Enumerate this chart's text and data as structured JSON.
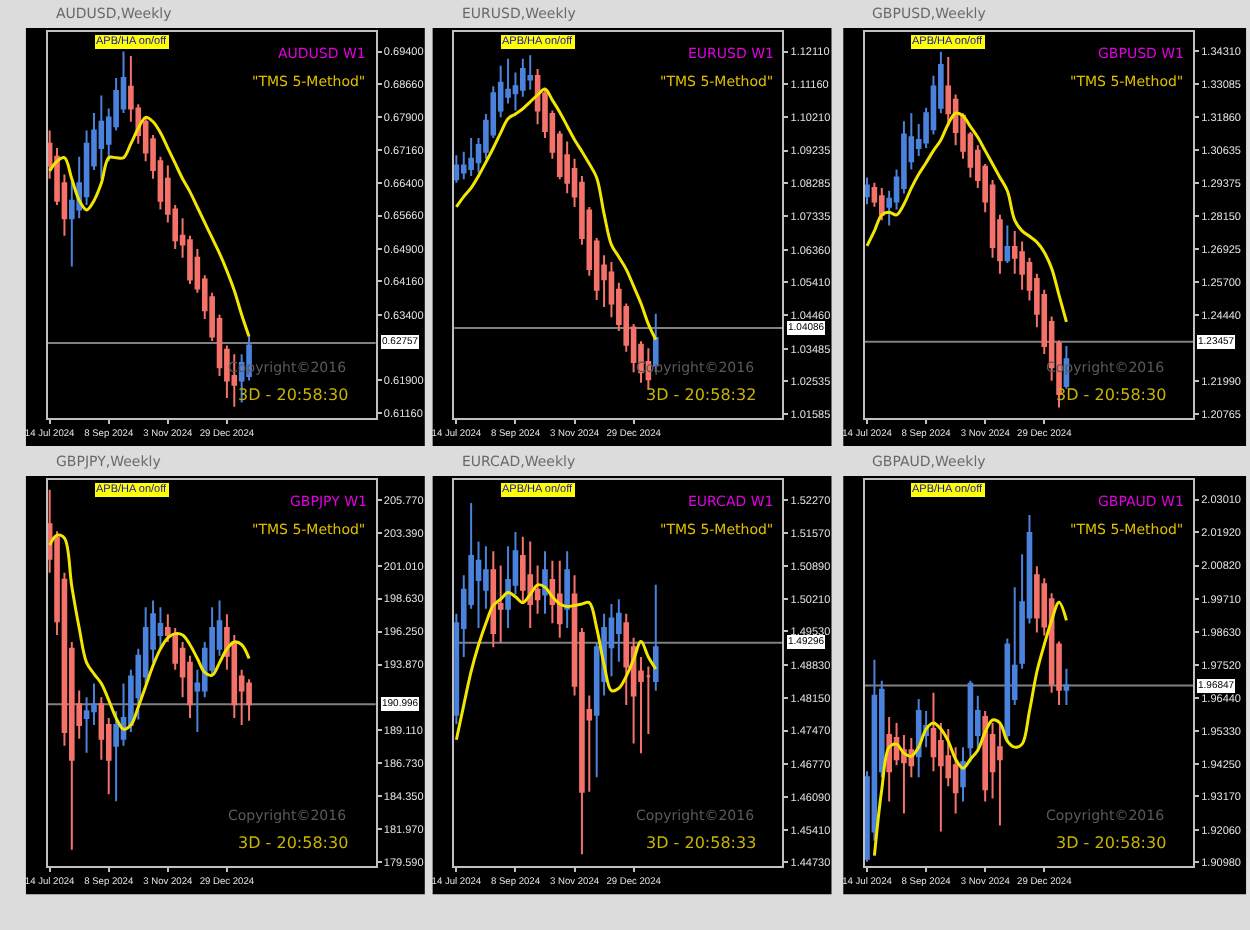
{
  "chart_data": [
    {
      "type": "candlestick",
      "title": "AUDUSD,Weekly",
      "annotations": [
        "APB/HA on/off",
        "AUDUSD W1",
        "\"TMS 5-Method\"",
        "Copyright©2016",
        "3D - 20:58:30"
      ],
      "x": [
        "2024-07-14",
        "2024-07-21",
        "2024-07-28",
        "2024-08-04",
        "2024-08-11",
        "2024-08-18",
        "2024-08-25",
        "2024-09-01",
        "2024-09-08",
        "2024-09-15",
        "2024-09-22",
        "2024-09-29",
        "2024-10-06",
        "2024-10-13",
        "2024-10-20",
        "2024-10-27",
        "2024-11-03",
        "2024-11-10",
        "2024-11-17",
        "2024-11-24",
        "2024-12-01",
        "2024-12-08",
        "2024-12-15",
        "2024-12-22",
        "2024-12-29",
        "2025-01-05",
        "2025-01-12",
        "2025-01-19"
      ],
      "ohlc": [
        [
          0.673,
          0.676,
          0.665,
          0.668
        ],
        [
          0.67,
          0.672,
          0.659,
          0.66
        ],
        [
          0.664,
          0.666,
          0.652,
          0.656
        ],
        [
          0.656,
          0.665,
          0.645,
          0.66
        ],
        [
          0.658,
          0.67,
          0.656,
          0.664
        ],
        [
          0.661,
          0.676,
          0.659,
          0.673
        ],
        [
          0.668,
          0.68,
          0.667,
          0.676
        ],
        [
          0.672,
          0.684,
          0.665,
          0.678
        ],
        [
          0.673,
          0.681,
          0.669,
          0.679
        ],
        [
          0.677,
          0.688,
          0.676,
          0.685
        ],
        [
          0.681,
          0.694,
          0.68,
          0.688
        ],
        [
          0.686,
          0.693,
          0.678,
          0.681
        ],
        [
          0.681,
          0.682,
          0.673,
          0.675
        ],
        [
          0.678,
          0.679,
          0.669,
          0.671
        ],
        [
          0.674,
          0.675,
          0.665,
          0.667
        ],
        [
          0.669,
          0.67,
          0.658,
          0.66
        ],
        [
          0.665,
          0.668,
          0.655,
          0.657
        ],
        [
          0.658,
          0.659,
          0.649,
          0.651
        ],
        [
          0.652,
          0.656,
          0.647,
          0.65
        ],
        [
          0.651,
          0.652,
          0.641,
          0.642
        ],
        [
          0.647,
          0.649,
          0.639,
          0.64
        ],
        [
          0.642,
          0.643,
          0.633,
          0.635
        ],
        [
          0.638,
          0.639,
          0.628,
          0.629
        ],
        [
          0.633,
          0.634,
          0.62,
          0.622
        ],
        [
          0.626,
          0.627,
          0.615,
          0.619
        ],
        [
          0.62,
          0.625,
          0.613,
          0.618
        ],
        [
          0.619,
          0.625,
          0.614,
          0.623
        ],
        [
          0.62,
          0.629,
          0.619,
          0.627
        ]
      ],
      "colors": [
        "#f4726a",
        "#f4726a",
        "#f4726a",
        "#4a82dc",
        "#4a82dc",
        "#4a82dc",
        "#4a82dc",
        "#4a82dc",
        "#4a82dc",
        "#4a82dc",
        "#4a82dc",
        "#f4726a",
        "#f4726a",
        "#f4726a",
        "#f4726a",
        "#f4726a",
        "#f4726a",
        "#f4726a",
        "#f4726a",
        "#f4726a",
        "#f4726a",
        "#f4726a",
        "#f4726a",
        "#f4726a",
        "#f4726a",
        "#f4726a",
        "#4a82dc",
        "#4a82dc"
      ],
      "series": [
        {
          "type": "line",
          "color": "#f2e600",
          "values": [
            0.6668,
            0.669,
            0.6698,
            0.665,
            0.6601,
            0.6579,
            0.66,
            0.664,
            0.6698,
            0.6698,
            0.6698,
            0.673,
            0.6765,
            0.679,
            0.678,
            0.6755,
            0.672,
            0.6685,
            0.665,
            0.662,
            0.6585,
            0.655,
            0.6515,
            0.648,
            0.644,
            0.6395,
            0.634,
            0.629
          ]
        }
      ],
      "xlim": [
        "2024-07-12",
        "2025-05-19"
      ],
      "xticks": [
        {
          "value": "2024-07-14",
          "label": "14 Jul 2024"
        },
        {
          "value": "2024-09-08",
          "label": "8 Sep 2024"
        },
        {
          "value": "2024-11-03",
          "label": "3 Nov 2024"
        },
        {
          "value": "2024-12-29",
          "label": "29 Dec 2024"
        }
      ],
      "ylim": [
        0.6104,
        0.6985
      ],
      "yticks": [
        {
          "value": 0.694,
          "label": "0.69400"
        },
        {
          "value": 0.6866,
          "label": "0.68660"
        },
        {
          "value": 0.679,
          "label": "0.67900"
        },
        {
          "value": 0.6716,
          "label": "0.67160"
        },
        {
          "value": 0.664,
          "label": "0.66400"
        },
        {
          "value": 0.6566,
          "label": "0.65660"
        },
        {
          "value": 0.649,
          "label": "0.64900"
        },
        {
          "value": 0.6416,
          "label": "0.64160"
        },
        {
          "value": 0.634,
          "label": "0.63400"
        },
        {
          "value": 0.619,
          "label": "0.61900"
        },
        {
          "value": 0.6116,
          "label": "0.61160"
        }
      ],
      "ref_lines": [
        {
          "axis": "y",
          "value": 0.62757,
          "label": "0.62757",
          "color": "#808080"
        }
      ]
    },
    {
      "type": "candlestick",
      "title": "EURUSD,Weekly",
      "annotations": [
        "APB/HA on/off",
        "EURUSD W1",
        "\"TMS 5-Method\"",
        "Copyright©2016",
        "3D - 20:58:32"
      ],
      "x": [
        "2024-07-14",
        "2024-07-21",
        "2024-07-28",
        "2024-08-04",
        "2024-08-11",
        "2024-08-18",
        "2024-08-25",
        "2024-09-01",
        "2024-09-08",
        "2024-09-15",
        "2024-09-22",
        "2024-09-29",
        "2024-10-06",
        "2024-10-13",
        "2024-10-20",
        "2024-10-27",
        "2024-11-03",
        "2024-11-10",
        "2024-11-17",
        "2024-11-24",
        "2024-12-01",
        "2024-12-08",
        "2024-12-15",
        "2024-12-22",
        "2024-12-29",
        "2025-01-05",
        "2025-01-12",
        "2025-01-19"
      ],
      "ohlc": [
        [
          1.084,
          1.091,
          1.083,
          1.088
        ],
        [
          1.086,
          1.092,
          1.084,
          1.088
        ],
        [
          1.087,
          1.096,
          1.085,
          1.09
        ],
        [
          1.089,
          1.096,
          1.086,
          1.094
        ],
        [
          1.092,
          1.103,
          1.09,
          1.101
        ],
        [
          1.097,
          1.111,
          1.096,
          1.109
        ],
        [
          1.104,
          1.117,
          1.102,
          1.112
        ],
        [
          1.108,
          1.119,
          1.106,
          1.11
        ],
        [
          1.109,
          1.115,
          1.104,
          1.111
        ],
        [
          1.11,
          1.119,
          1.108,
          1.116
        ],
        [
          1.113,
          1.12,
          1.11,
          1.114
        ],
        [
          1.114,
          1.116,
          1.1,
          1.104
        ],
        [
          1.109,
          1.11,
          1.096,
          1.098
        ],
        [
          1.103,
          1.104,
          1.09,
          1.092
        ],
        [
          1.097,
          1.098,
          1.084,
          1.085
        ],
        [
          1.091,
          1.095,
          1.08,
          1.083
        ],
        [
          1.087,
          1.09,
          1.076,
          1.079
        ],
        [
          1.083,
          1.085,
          1.065,
          1.067
        ],
        [
          1.075,
          1.076,
          1.056,
          1.058
        ],
        [
          1.066,
          1.067,
          1.049,
          1.052
        ],
        [
          1.059,
          1.062,
          1.047,
          1.055
        ],
        [
          1.057,
          1.06,
          1.044,
          1.048
        ],
        [
          1.052,
          1.054,
          1.04,
          1.042
        ],
        [
          1.047,
          1.048,
          1.034,
          1.036
        ],
        [
          1.041,
          1.042,
          1.028,
          1.031
        ],
        [
          1.036,
          1.037,
          1.025,
          1.028
        ],
        [
          1.031,
          1.035,
          1.023,
          1.026
        ],
        [
          1.03,
          1.045,
          1.028,
          1.038
        ]
      ],
      "colors": [
        "#4a82dc",
        "#4a82dc",
        "#4a82dc",
        "#4a82dc",
        "#4a82dc",
        "#4a82dc",
        "#4a82dc",
        "#4a82dc",
        "#4a82dc",
        "#4a82dc",
        "#4a82dc",
        "#f4726a",
        "#f4726a",
        "#f4726a",
        "#f4726a",
        "#f4726a",
        "#f4726a",
        "#f4726a",
        "#f4726a",
        "#f4726a",
        "#f4726a",
        "#f4726a",
        "#f4726a",
        "#f4726a",
        "#f4726a",
        "#f4726a",
        "#f4726a",
        "#4a82dc"
      ],
      "series": [
        {
          "type": "line",
          "color": "#f2e600",
          "values": [
            1.076,
            1.079,
            1.0815,
            1.085,
            1.089,
            1.0931,
            1.0975,
            1.1016,
            1.103,
            1.1045,
            1.1065,
            1.1085,
            1.1102,
            1.107,
            1.1035,
            1.0995,
            1.0955,
            1.0921,
            1.0885,
            1.0845,
            1.074,
            1.065,
            1.0615,
            1.0579,
            1.053,
            1.048,
            1.042,
            1.0375
          ]
        }
      ],
      "xlim": [
        "2024-07-12",
        "2025-05-19"
      ],
      "xticks": [
        {
          "value": "2024-07-14",
          "label": "14 Jul 2024"
        },
        {
          "value": "2024-09-08",
          "label": "8 Sep 2024"
        },
        {
          "value": "2024-11-03",
          "label": "3 Nov 2024"
        },
        {
          "value": "2024-12-29",
          "label": "29 Dec 2024"
        }
      ],
      "ylim": [
        1.0147,
        1.1268
      ],
      "yticks": [
        {
          "value": 1.1211,
          "label": "1.12110"
        },
        {
          "value": 1.1116,
          "label": "1.11160"
        },
        {
          "value": 1.1021,
          "label": "1.10210"
        },
        {
          "value": 1.09235,
          "label": "1.09235"
        },
        {
          "value": 1.08285,
          "label": "1.08285"
        },
        {
          "value": 1.07335,
          "label": "1.07335"
        },
        {
          "value": 1.0636,
          "label": "1.06360"
        },
        {
          "value": 1.0541,
          "label": "1.05410"
        },
        {
          "value": 1.0446,
          "label": "1.04460"
        },
        {
          "value": 1.03485,
          "label": "1.03485"
        },
        {
          "value": 1.02535,
          "label": "1.02535"
        },
        {
          "value": 1.01585,
          "label": "1.01585"
        }
      ],
      "ref_lines": [
        {
          "axis": "y",
          "value": 1.04086,
          "label": "1.04086",
          "color": "#808080"
        }
      ]
    },
    {
      "type": "candlestick",
      "title": "GBPUSD,Weekly",
      "annotations": [
        "APB/HA on/off",
        "GBPUSD W1",
        "\"TMS 5-Method\"",
        "Copyright©2016",
        "3D - 20:58:30"
      ],
      "x": [
        "2024-07-14",
        "2024-07-21",
        "2024-07-28",
        "2024-08-04",
        "2024-08-11",
        "2024-08-18",
        "2024-08-25",
        "2024-09-01",
        "2024-09-08",
        "2024-09-15",
        "2024-09-22",
        "2024-09-29",
        "2024-10-06",
        "2024-10-13",
        "2024-10-20",
        "2024-10-27",
        "2024-11-03",
        "2024-11-10",
        "2024-11-17",
        "2024-11-24",
        "2024-12-01",
        "2024-12-08",
        "2024-12-15",
        "2024-12-22",
        "2024-12-29",
        "2025-01-05",
        "2025-01-12",
        "2025-01-19"
      ],
      "ohlc": [
        [
          1.289,
          1.296,
          1.286,
          1.293
        ],
        [
          1.292,
          1.294,
          1.285,
          1.287
        ],
        [
          1.289,
          1.292,
          1.28,
          1.282
        ],
        [
          1.285,
          1.291,
          1.278,
          1.288
        ],
        [
          1.287,
          1.299,
          1.284,
          1.296
        ],
        [
          1.292,
          1.317,
          1.29,
          1.312
        ],
        [
          1.302,
          1.32,
          1.299,
          1.311
        ],
        [
          1.307,
          1.316,
          1.304,
          1.31
        ],
        [
          1.309,
          1.322,
          1.307,
          1.32
        ],
        [
          1.314,
          1.334,
          1.312,
          1.33
        ],
        [
          1.322,
          1.343,
          1.32,
          1.338
        ],
        [
          1.33,
          1.341,
          1.315,
          1.32
        ],
        [
          1.325,
          1.327,
          1.308,
          1.313
        ],
        [
          1.319,
          1.32,
          1.303,
          1.306
        ],
        [
          1.312,
          1.313,
          1.296,
          1.3
        ],
        [
          1.306,
          1.308,
          1.292,
          1.295
        ],
        [
          1.3,
          1.301,
          1.283,
          1.287
        ],
        [
          1.293,
          1.295,
          1.266,
          1.27
        ],
        [
          1.28,
          1.282,
          1.26,
          1.265
        ],
        [
          1.265,
          1.278,
          1.264,
          1.27
        ],
        [
          1.27,
          1.276,
          1.26,
          1.266
        ],
        [
          1.268,
          1.272,
          1.254,
          1.26
        ],
        [
          1.264,
          1.266,
          1.25,
          1.254
        ],
        [
          1.258,
          1.26,
          1.24,
          1.245
        ],
        [
          1.252,
          1.254,
          1.23,
          1.233
        ],
        [
          1.242,
          1.244,
          1.22,
          1.225
        ],
        [
          1.234,
          1.235,
          1.21,
          1.215
        ],
        [
          1.218,
          1.233,
          1.217,
          1.228
        ]
      ],
      "colors": [
        "#4a82dc",
        "#f4726a",
        "#f4726a",
        "#4a82dc",
        "#4a82dc",
        "#4a82dc",
        "#4a82dc",
        "#4a82dc",
        "#4a82dc",
        "#4a82dc",
        "#4a82dc",
        "#f4726a",
        "#f4726a",
        "#f4726a",
        "#f4726a",
        "#f4726a",
        "#f4726a",
        "#f4726a",
        "#f4726a",
        "#4a82dc",
        "#f4726a",
        "#f4726a",
        "#f4726a",
        "#f4726a",
        "#f4726a",
        "#f4726a",
        "#f4726a",
        "#4a82dc"
      ],
      "series": [
        {
          "type": "line",
          "color": "#f2e600",
          "values": [
            1.2704,
            1.276,
            1.282,
            1.283,
            1.282,
            1.286,
            1.292,
            1.2972,
            1.3015,
            1.306,
            1.31,
            1.316,
            1.32,
            1.319,
            1.315,
            1.311,
            1.306,
            1.301,
            1.296,
            1.291,
            1.28,
            1.276,
            1.274,
            1.2718,
            1.268,
            1.262,
            1.252,
            1.242
          ]
        }
      ],
      "xlim": [
        "2024-07-12",
        "2025-05-19"
      ],
      "xticks": [
        {
          "value": "2024-07-14",
          "label": "14 Jul 2024"
        },
        {
          "value": "2024-09-08",
          "label": "8 Sep 2024"
        },
        {
          "value": "2024-11-03",
          "label": "3 Nov 2024"
        },
        {
          "value": "2024-12-29",
          "label": "29 Dec 2024"
        }
      ],
      "ylim": [
        1.206,
        1.3504
      ],
      "yticks": [
        {
          "value": 1.3431,
          "label": "1.34310"
        },
        {
          "value": 1.33085,
          "label": "1.33085"
        },
        {
          "value": 1.3186,
          "label": "1.31860"
        },
        {
          "value": 1.30635,
          "label": "1.30635"
        },
        {
          "value": 1.29375,
          "label": "1.29375"
        },
        {
          "value": 1.2815,
          "label": "1.28150"
        },
        {
          "value": 1.26925,
          "label": "1.26925"
        },
        {
          "value": 1.257,
          "label": "1.25700"
        },
        {
          "value": 1.2444,
          "label": "1.24440"
        },
        {
          "value": 1.2199,
          "label": "1.21990"
        },
        {
          "value": 1.20765,
          "label": "1.20765"
        }
      ],
      "ref_lines": [
        {
          "axis": "y",
          "value": 1.23457,
          "label": "1.23457",
          "color": "#808080"
        }
      ]
    },
    {
      "type": "candlestick",
      "title": "GBPJPY,Weekly",
      "annotations": [
        "APB/HA on/off",
        "GBPJPY W1",
        "\"TMS 5-Method\"",
        "Copyright©2016",
        "3D - 20:58:30"
      ],
      "x": [
        "2024-07-14",
        "2024-07-21",
        "2024-07-28",
        "2024-08-04",
        "2024-08-11",
        "2024-08-18",
        "2024-08-25",
        "2024-09-01",
        "2024-09-08",
        "2024-09-15",
        "2024-09-22",
        "2024-09-29",
        "2024-10-06",
        "2024-10-13",
        "2024-10-20",
        "2024-10-27",
        "2024-11-03",
        "2024-11-10",
        "2024-11-17",
        "2024-11-24",
        "2024-12-01",
        "2024-12-08",
        "2024-12-15",
        "2024-12-22",
        "2024-12-29",
        "2025-01-05",
        "2025-01-12",
        "2025-01-19"
      ],
      "ohlc": [
        [
          204.0,
          206.5,
          200.5,
          201.5
        ],
        [
          203.0,
          203.5,
          196.0,
          197.0
        ],
        [
          200.0,
          200.5,
          188.0,
          189.0
        ],
        [
          195.0,
          195.5,
          180.5,
          187.0
        ],
        [
          191.0,
          192.0,
          188.5,
          189.5
        ],
        [
          190.0,
          191.5,
          187.5,
          190.5
        ],
        [
          190.5,
          192.5,
          189.5,
          191.0
        ],
        [
          191.0,
          191.5,
          187.0,
          188.5
        ],
        [
          189.5,
          190.0,
          184.5,
          187.0
        ],
        [
          188.0,
          190.5,
          184.0,
          189.5
        ],
        [
          188.5,
          192.5,
          188.0,
          190.0
        ],
        [
          189.5,
          193.5,
          189.0,
          193.0
        ],
        [
          191.5,
          195.0,
          189.9,
          194.5
        ],
        [
          193.0,
          198.0,
          192.5,
          196.5
        ],
        [
          195.0,
          198.5,
          194.0,
          197.5
        ],
        [
          196.0,
          198.0,
          195.0,
          196.8
        ],
        [
          196.5,
          197.5,
          195.5,
          196.0
        ],
        [
          196.0,
          196.5,
          193.5,
          194.0
        ],
        [
          195.0,
          195.5,
          191.5,
          193.0
        ],
        [
          194.0,
          194.5,
          190.0,
          191.0
        ],
        [
          192.0,
          193.5,
          189.0,
          192.5
        ],
        [
          192.0,
          195.5,
          191.5,
          195.0
        ],
        [
          193.5,
          198.0,
          193.0,
          196.5
        ],
        [
          195.0,
          198.5,
          194.5,
          197.0
        ],
        [
          196.5,
          197.5,
          193.5,
          194.5
        ],
        [
          195.5,
          196.0,
          190.0,
          191.0
        ],
        [
          193.0,
          193.5,
          189.5,
          192.0
        ],
        [
          192.5,
          192.8,
          189.8,
          191.0
        ]
      ],
      "colors": [
        "#f4726a",
        "#f4726a",
        "#f4726a",
        "#f4726a",
        "#f4726a",
        "#4a82dc",
        "#4a82dc",
        "#f4726a",
        "#f4726a",
        "#4a82dc",
        "#4a82dc",
        "#4a82dc",
        "#4a82dc",
        "#4a82dc",
        "#4a82dc",
        "#4a82dc",
        "#f4726a",
        "#f4726a",
        "#f4726a",
        "#f4726a",
        "#4a82dc",
        "#4a82dc",
        "#4a82dc",
        "#4a82dc",
        "#f4726a",
        "#f4726a",
        "#f4726a",
        "#f4726a"
      ],
      "series": [
        {
          "type": "line",
          "color": "#f2e600",
          "values": [
            202.5,
            203.2,
            203.0,
            199.5,
            196.5,
            194.0,
            193.2,
            192.5,
            191.3,
            190.0,
            189.2,
            189.5,
            190.8,
            192.3,
            193.8,
            195.0,
            195.8,
            196.1,
            196.0,
            195.3,
            194.3,
            193.3,
            193.1,
            194.0,
            195.0,
            195.5,
            195.3,
            194.3
          ]
        }
      ],
      "xlim": [
        "2024-07-12",
        "2025-05-19"
      ],
      "xticks": [
        {
          "value": "2024-07-14",
          "label": "14 Jul 2024"
        },
        {
          "value": "2024-09-08",
          "label": "8 Sep 2024"
        },
        {
          "value": "2024-11-03",
          "label": "3 Nov 2024"
        },
        {
          "value": "2024-12-29",
          "label": "29 Dec 2024"
        }
      ],
      "ylim": [
        179.3,
        207.2
      ],
      "yticks": [
        {
          "value": 205.77,
          "label": "205.770"
        },
        {
          "value": 203.39,
          "label": "203.390"
        },
        {
          "value": 201.01,
          "label": "201.010"
        },
        {
          "value": 198.63,
          "label": "198.630"
        },
        {
          "value": 196.25,
          "label": "196.250"
        },
        {
          "value": 193.87,
          "label": "193.870"
        },
        {
          "value": 189.11,
          "label": "189.110"
        },
        {
          "value": 186.73,
          "label": "186.730"
        },
        {
          "value": 184.35,
          "label": "184.350"
        },
        {
          "value": 181.97,
          "label": "181.970"
        },
        {
          "value": 179.59,
          "label": "179.590"
        }
      ],
      "ref_lines": [
        {
          "axis": "y",
          "value": 190.996,
          "label": "190.996",
          "color": "#808080"
        }
      ]
    },
    {
      "type": "candlestick",
      "title": "EURCAD,Weekly",
      "annotations": [
        "APB/HA on/off",
        "EURCAD W1",
        "\"TMS 5-Method\"",
        "Copyright©2016",
        "3D - 20:58:33"
      ],
      "x": [
        "2024-07-14",
        "2024-07-21",
        "2024-07-28",
        "2024-08-04",
        "2024-08-11",
        "2024-08-18",
        "2024-08-25",
        "2024-09-01",
        "2024-09-08",
        "2024-09-15",
        "2024-09-22",
        "2024-09-29",
        "2024-10-06",
        "2024-10-13",
        "2024-10-20",
        "2024-10-27",
        "2024-11-03",
        "2024-11-10",
        "2024-11-17",
        "2024-11-24",
        "2024-12-01",
        "2024-12-08",
        "2024-12-15",
        "2024-12-22",
        "2024-12-29",
        "2025-01-05",
        "2025-01-12",
        "2025-01-19"
      ],
      "ohlc": [
        [
          1.478,
          1.499,
          1.476,
          1.497
        ],
        [
          1.496,
          1.507,
          1.49,
          1.504
        ],
        [
          1.501,
          1.522,
          1.5,
          1.511
        ],
        [
          1.506,
          1.514,
          1.496,
          1.51
        ],
        [
          1.504,
          1.513,
          1.5,
          1.508
        ],
        [
          1.508,
          1.512,
          1.492,
          1.495
        ],
        [
          1.501,
          1.509,
          1.493,
          1.5
        ],
        [
          1.5,
          1.513,
          1.496,
          1.506
        ],
        [
          1.505,
          1.516,
          1.503,
          1.512
        ],
        [
          1.511,
          1.515,
          1.501,
          1.504
        ],
        [
          1.507,
          1.514,
          1.496,
          1.501
        ],
        [
          1.504,
          1.509,
          1.499,
          1.502
        ],
        [
          1.503,
          1.512,
          1.499,
          1.508
        ],
        [
          1.506,
          1.51,
          1.497,
          1.501
        ],
        [
          1.503,
          1.51,
          1.494,
          1.497
        ],
        [
          1.5,
          1.512,
          1.496,
          1.508
        ],
        [
          1.503,
          1.507,
          1.482,
          1.484
        ],
        [
          1.495,
          1.496,
          1.449,
          1.462
        ],
        [
          1.479,
          1.482,
          1.462,
          1.477
        ],
        [
          1.478,
          1.493,
          1.465,
          1.492
        ],
        [
          1.485,
          1.499,
          1.482,
          1.496
        ],
        [
          1.492,
          1.501,
          1.486,
          1.498
        ],
        [
          1.495,
          1.502,
          1.489,
          1.499
        ],
        [
          1.497,
          1.499,
          1.48,
          1.488
        ],
        [
          1.492,
          1.494,
          1.472,
          1.482
        ],
        [
          1.487,
          1.49,
          1.47,
          1.485
        ],
        [
          1.486,
          1.488,
          1.474,
          1.486
        ],
        [
          1.485,
          1.505,
          1.483,
          1.492
        ]
      ],
      "colors": [
        "#4a82dc",
        "#4a82dc",
        "#4a82dc",
        "#4a82dc",
        "#4a82dc",
        "#f4726a",
        "#f4726a",
        "#4a82dc",
        "#4a82dc",
        "#f4726a",
        "#f4726a",
        "#f4726a",
        "#4a82dc",
        "#f4726a",
        "#f4726a",
        "#4a82dc",
        "#f4726a",
        "#f4726a",
        "#f4726a",
        "#4a82dc",
        "#4a82dc",
        "#4a82dc",
        "#4a82dc",
        "#f4726a",
        "#f4726a",
        "#f4726a",
        "#f4726a",
        "#4a82dc"
      ],
      "series": [
        {
          "type": "line",
          "color": "#f2e600",
          "values": [
            1.4728,
            1.48,
            1.487,
            1.4925,
            1.497,
            1.5007,
            1.502,
            1.5034,
            1.5025,
            1.5013,
            1.503,
            1.505,
            1.5045,
            1.5025,
            1.501,
            1.5005,
            1.5007,
            1.501,
            1.5013,
            1.496,
            1.4884,
            1.483,
            1.4835,
            1.486,
            1.4895,
            1.4932,
            1.49,
            1.4875
          ]
        }
      ],
      "xlim": [
        "2024-07-12",
        "2025-05-19"
      ],
      "xticks": [
        {
          "value": "2024-07-14",
          "label": "14 Jul 2024"
        },
        {
          "value": "2024-09-08",
          "label": "8 Sep 2024"
        },
        {
          "value": "2024-11-03",
          "label": "3 Nov 2024"
        },
        {
          "value": "2024-12-29",
          "label": "29 Dec 2024"
        }
      ],
      "ylim": [
        1.4465,
        1.5268
      ],
      "yticks": [
        {
          "value": 1.5227,
          "label": "1.52270"
        },
        {
          "value": 1.5157,
          "label": "1.51570"
        },
        {
          "value": 1.5089,
          "label": "1.50890"
        },
        {
          "value": 1.5021,
          "label": "1.50210"
        },
        {
          "value": 1.4953,
          "label": "1.49530"
        },
        {
          "value": 1.4883,
          "label": "1.48830"
        },
        {
          "value": 1.4815,
          "label": "1.48150"
        },
        {
          "value": 1.4747,
          "label": "1.47470"
        },
        {
          "value": 1.4677,
          "label": "1.46770"
        },
        {
          "value": 1.4609,
          "label": "1.46090"
        },
        {
          "value": 1.4541,
          "label": "1.45410"
        },
        {
          "value": 1.4473,
          "label": "1.44730"
        }
      ],
      "ref_lines": [
        {
          "axis": "y",
          "value": 1.49296,
          "label": "1.49296",
          "color": "#808080"
        }
      ]
    },
    {
      "type": "candlestick",
      "title": "GBPAUD,Weekly",
      "annotations": [
        "APB/HA on/off",
        "GBPAUD W1",
        "\"TMS 5-Method\"",
        "Copyright©2016",
        "3D - 20:58:30"
      ],
      "x": [
        "2024-07-14",
        "2024-07-21",
        "2024-07-28",
        "2024-08-04",
        "2024-08-11",
        "2024-08-18",
        "2024-08-25",
        "2024-09-01",
        "2024-09-08",
        "2024-09-15",
        "2024-09-22",
        "2024-09-29",
        "2024-10-06",
        "2024-10-13",
        "2024-10-20",
        "2024-10-27",
        "2024-11-03",
        "2024-11-10",
        "2024-11-17",
        "2024-11-24",
        "2024-12-01",
        "2024-12-08",
        "2024-12-15",
        "2024-12-22",
        "2024-12-29",
        "2025-01-05",
        "2025-01-12",
        "2025-01-19"
      ],
      "ohlc": [
        [
          1.911,
          1.94,
          1.91,
          1.938
        ],
        [
          1.92,
          1.977,
          1.917,
          1.965
        ],
        [
          1.94,
          1.97,
          1.938,
          1.967
        ],
        [
          1.952,
          1.958,
          1.93,
          1.94
        ],
        [
          1.951,
          1.956,
          1.942,
          1.944
        ],
        [
          1.947,
          1.952,
          1.926,
          1.943
        ],
        [
          1.947,
          1.951,
          1.938,
          1.942
        ],
        [
          1.945,
          1.964,
          1.938,
          1.96
        ],
        [
          1.952,
          1.96,
          1.948,
          1.955
        ],
        [
          1.954,
          1.966,
          1.94,
          1.945
        ],
        [
          1.95,
          1.956,
          1.92,
          1.942
        ],
        [
          1.945,
          1.954,
          1.935,
          1.938
        ],
        [
          1.942,
          1.948,
          1.926,
          1.933
        ],
        [
          1.935,
          1.948,
          1.93,
          1.943
        ],
        [
          1.948,
          1.97,
          1.943,
          1.969
        ],
        [
          1.952,
          1.965,
          1.947,
          1.96
        ],
        [
          1.958,
          1.96,
          1.93,
          1.934
        ],
        [
          1.952,
          1.956,
          1.931,
          1.94
        ],
        [
          1.948,
          1.956,
          1.922,
          1.944
        ],
        [
          1.952,
          1.984,
          1.95,
          1.982
        ],
        [
          1.964,
          2.001,
          1.962,
          1.975
        ],
        [
          1.976,
          2.012,
          1.974,
          1.996
        ],
        [
          1.991,
          2.025,
          1.989,
          2.019
        ],
        [
          2.005,
          2.008,
          1.986,
          1.991
        ],
        [
          2.002,
          2.004,
          1.985,
          1.988
        ],
        [
          1.997,
          1.999,
          1.966,
          1.969
        ],
        [
          1.982,
          1.983,
          1.962,
          1.967
        ],
        [
          1.967,
          1.974,
          1.962,
          1.9685
        ]
      ],
      "colors": [
        "#4a82dc",
        "#4a82dc",
        "#4a82dc",
        "#f4726a",
        "#f4726a",
        "#f4726a",
        "#f4726a",
        "#4a82dc",
        "#4a82dc",
        "#f4726a",
        "#f4726a",
        "#f4726a",
        "#f4726a",
        "#4a82dc",
        "#4a82dc",
        "#4a82dc",
        "#f4726a",
        "#f4726a",
        "#f4726a",
        "#4a82dc",
        "#4a82dc",
        "#4a82dc",
        "#4a82dc",
        "#f4726a",
        "#f4726a",
        "#f4726a",
        "#f4726a",
        "#4a82dc"
      ],
      "series": [
        {
          "type": "line",
          "color": "#f2e600",
          "values": [
            null,
            1.912,
            1.934,
            1.948,
            1.949,
            1.946,
            1.945,
            1.948,
            1.954,
            1.956,
            1.954,
            1.95,
            1.944,
            1.941,
            1.944,
            1.947,
            1.953,
            1.957,
            1.956,
            1.95,
            1.948,
            1.949,
            1.96,
            1.973,
            1.982,
            1.99,
            1.996,
            1.99
          ]
        }
      ],
      "xlim": [
        "2024-07-12",
        "2025-05-19"
      ],
      "xticks": [
        {
          "value": "2024-07-14",
          "label": "14 Jul 2024"
        },
        {
          "value": "2024-09-08",
          "label": "8 Sep 2024"
        },
        {
          "value": "2024-11-03",
          "label": "3 Nov 2024"
        },
        {
          "value": "2024-12-29",
          "label": "29 Dec 2024"
        }
      ],
      "ylim": [
        1.9085,
        2.0366
      ],
      "yticks": [
        {
          "value": 2.0301,
          "label": "2.03010"
        },
        {
          "value": 2.0192,
          "label": "2.01920"
        },
        {
          "value": 2.0082,
          "label": "2.00820"
        },
        {
          "value": 1.9971,
          "label": "1.99710"
        },
        {
          "value": 1.9863,
          "label": "1.98630"
        },
        {
          "value": 1.9752,
          "label": "1.97520"
        },
        {
          "value": 1.9644,
          "label": "1.96440"
        },
        {
          "value": 1.9533,
          "label": "1.95330"
        },
        {
          "value": 1.9425,
          "label": "1.94250"
        },
        {
          "value": 1.9317,
          "label": "1.93170"
        },
        {
          "value": 1.9206,
          "label": "1.92060"
        },
        {
          "value": 1.9098,
          "label": "1.90980"
        }
      ],
      "ref_lines": [
        {
          "axis": "y",
          "value": 1.96847,
          "label": "1.96847",
          "color": "#808080"
        }
      ]
    }
  ]
}
